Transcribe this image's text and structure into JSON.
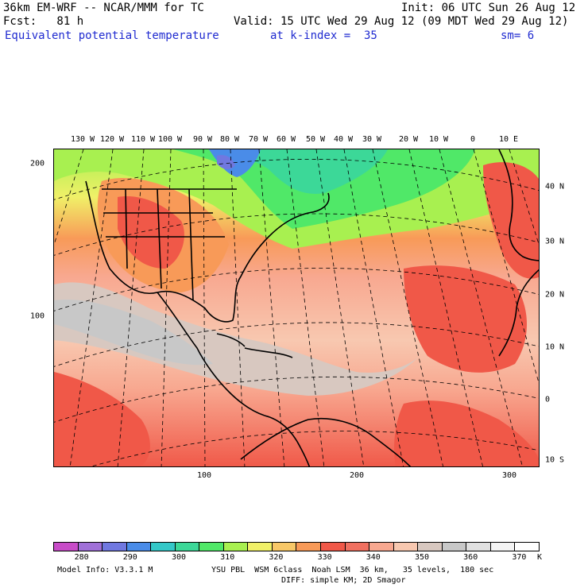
{
  "header": {
    "model": "36km EM-WRF -- NCAR/MMM for TC",
    "init": "Init: 06 UTC Sun 26 Aug 12",
    "fcst": "Fcst:   81 h",
    "valid": "Valid: 15 UTC Wed 29 Aug 12 (09 MDT Wed 29 Aug 12)",
    "field": "Equivalent potential temperature",
    "level": "at k-index =  35",
    "smoothing": "sm= 6"
  },
  "map": {
    "lon_labels": [
      "130 W",
      "120 W",
      "110 W",
      "100 W",
      "90 W",
      "80 W",
      "70 W",
      "60 W",
      "50 W",
      "40 W",
      "30 W",
      "20 W",
      "10 W",
      "0",
      "10 E"
    ],
    "lat_labels": [
      "40 N",
      "30 N",
      "20 N",
      "10 N",
      "0",
      "10 S"
    ],
    "grid_y_labels": [
      "200",
      "100"
    ],
    "grid_x_labels": [
      "100",
      "200",
      "300"
    ],
    "colors": {
      "land_outline": "#000000",
      "graticule": "#000000"
    }
  },
  "colorbar": {
    "labels": [
      "280",
      "290",
      "300",
      "310",
      "320",
      "330",
      "340",
      "350",
      "360",
      "370"
    ],
    "unit": "K",
    "colors": [
      "#c84cc8",
      "#a070d8",
      "#7078e0",
      "#4a8ce8",
      "#34c8c8",
      "#3cd898",
      "#50e868",
      "#a8f050",
      "#f0f068",
      "#f8c868",
      "#f89a58",
      "#f05848",
      "#f07060",
      "#f8a890",
      "#f8c8b0",
      "#d8c8c0",
      "#c8c8c8",
      "#e0e0e0",
      "#f4f4f4",
      "#ffffff"
    ]
  },
  "footer": {
    "model_info": "Model Info: V3.3.1 M",
    "physics": "YSU PBL  WSM 6class  Noah LSM  36 km,   35 levels,  180 sec",
    "diffusion": "DIFF: simple KM; 2D Smagor"
  }
}
